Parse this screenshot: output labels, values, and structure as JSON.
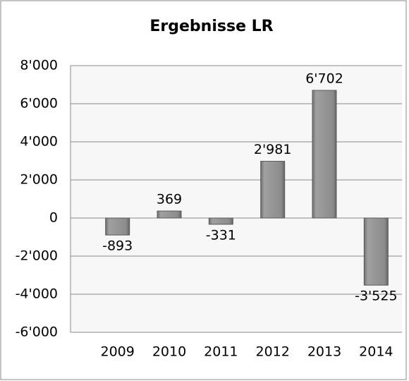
{
  "chart_data": {
    "type": "bar",
    "title": "Ergebnisse LR",
    "categories": [
      "2009",
      "2010",
      "2011",
      "2012",
      "2013",
      "2014"
    ],
    "values": [
      -893,
      369,
      -331,
      2981,
      6702,
      -3525
    ],
    "value_labels": [
      "-893",
      "369",
      "-331",
      "2'981",
      "6'702",
      "-3'525"
    ],
    "color": "#8c8c8c",
    "ylim": [
      -6000,
      8000
    ],
    "yticks": [
      {
        "value": -6000,
        "label": "-6'000"
      },
      {
        "value": -4000,
        "label": "-4'000"
      },
      {
        "value": -2000,
        "label": "-2'000"
      },
      0,
      {
        "value": 2000,
        "label": "2'000"
      },
      {
        "value": 4000,
        "label": "4'000"
      },
      {
        "value": 6000,
        "label": "6'000"
      },
      {
        "value": 8000,
        "label": "8'000"
      }
    ],
    "grid": true
  }
}
